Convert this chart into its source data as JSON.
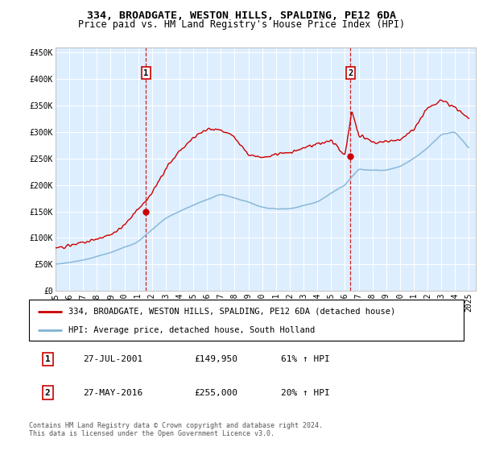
{
  "title1": "334, BROADGATE, WESTON HILLS, SPALDING, PE12 6DA",
  "title2": "Price paid vs. HM Land Registry's House Price Index (HPI)",
  "xlim": [
    1995.0,
    2025.5
  ],
  "ylim": [
    0,
    460000
  ],
  "yticks": [
    0,
    50000,
    100000,
    150000,
    200000,
    250000,
    300000,
    350000,
    400000,
    450000
  ],
  "ytick_labels": [
    "£0",
    "£50K",
    "£100K",
    "£150K",
    "£200K",
    "£250K",
    "£300K",
    "£350K",
    "£400K",
    "£450K"
  ],
  "xticks": [
    1995,
    1996,
    1997,
    1998,
    1999,
    2000,
    2001,
    2002,
    2003,
    2004,
    2005,
    2006,
    2007,
    2008,
    2009,
    2010,
    2011,
    2012,
    2013,
    2014,
    2015,
    2016,
    2017,
    2018,
    2019,
    2020,
    2021,
    2022,
    2023,
    2024,
    2025
  ],
  "hpi_color": "#7fb3d3",
  "sale_color": "#cc0000",
  "bg_color": "#ddeeff",
  "grid_color": "#ffffff",
  "point1_x": 2001.57,
  "point1_y": 149950,
  "point2_x": 2016.41,
  "point2_y": 255000,
  "legend_label1": "334, BROADGATE, WESTON HILLS, SPALDING, PE12 6DA (detached house)",
  "legend_label2": "HPI: Average price, detached house, South Holland",
  "table_row1": [
    "1",
    "27-JUL-2001",
    "£149,950",
    "61% ↑ HPI"
  ],
  "table_row2": [
    "2",
    "27-MAY-2016",
    "£255,000",
    "20% ↑ HPI"
  ],
  "footer": "Contains HM Land Registry data © Crown copyright and database right 2024.\nThis data is licensed under the Open Government Licence v3.0.",
  "title_fontsize": 9.5,
  "subtitle_fontsize": 8.5,
  "tick_fontsize": 7,
  "legend_fontsize": 7.5,
  "hpi_anchors_x": [
    1995,
    1997,
    1999,
    2001,
    2003,
    2005,
    2007,
    2009,
    2010,
    2011,
    2012,
    2014,
    2016,
    2017,
    2018,
    2019,
    2020,
    2021,
    2022,
    2023,
    2024,
    2025
  ],
  "hpi_anchors_y": [
    50000,
    58000,
    72000,
    93000,
    138000,
    162000,
    183000,
    168000,
    158000,
    155000,
    155000,
    168000,
    200000,
    230000,
    228000,
    228000,
    235000,
    250000,
    270000,
    295000,
    300000,
    270000
  ],
  "sale_anchors_x": [
    1995,
    1996,
    1997,
    1998,
    1999,
    2000,
    2001,
    2002,
    2003,
    2004,
    2005,
    2006,
    2007,
    2008,
    2009,
    2010,
    2011,
    2012,
    2013,
    2014,
    2015,
    2016,
    2016.5,
    2017,
    2018,
    2019,
    2020,
    2021,
    2022,
    2023,
    2024,
    2025
  ],
  "sale_anchors_y": [
    82000,
    85000,
    92000,
    98000,
    105000,
    125000,
    155000,
    185000,
    230000,
    265000,
    290000,
    305000,
    305000,
    290000,
    258000,
    252000,
    258000,
    262000,
    270000,
    278000,
    285000,
    255000,
    340000,
    295000,
    280000,
    282000,
    285000,
    305000,
    345000,
    360000,
    345000,
    325000
  ]
}
